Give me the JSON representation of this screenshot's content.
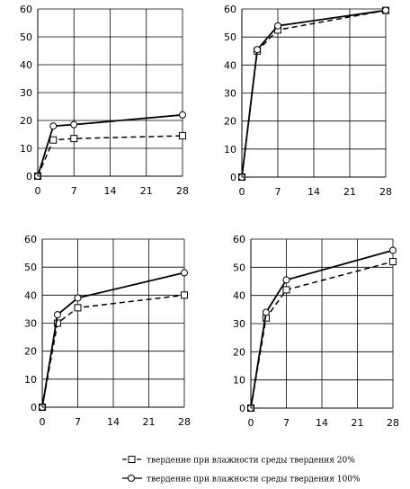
{
  "chart_data": [
    {
      "type": "line",
      "x": [
        0,
        3,
        7,
        28
      ],
      "xticks": [
        0,
        7,
        14,
        21,
        28
      ],
      "yticks": [
        0,
        10,
        20,
        30,
        40,
        50,
        60
      ],
      "xlim": [
        0,
        28
      ],
      "ylim": [
        0,
        60
      ],
      "grid": true,
      "series": [
        {
          "name": "твердение при влажности среды твердения 20%",
          "marker": "square",
          "style": "dashed",
          "values": [
            0,
            13,
            13.5,
            14.5
          ]
        },
        {
          "name": "твердение при влажности среды твердения 100%",
          "marker": "circle",
          "style": "solid",
          "values": [
            0,
            18,
            18.5,
            22
          ]
        }
      ]
    },
    {
      "type": "line",
      "x": [
        0,
        3,
        7,
        28
      ],
      "xticks": [
        0,
        7,
        14,
        21,
        28
      ],
      "yticks": [
        0,
        10,
        20,
        30,
        40,
        50,
        60
      ],
      "xlim": [
        0,
        28
      ],
      "ylim": [
        0,
        60
      ],
      "grid": true,
      "series": [
        {
          "name": "твердение при влажности среды твердения 20%",
          "marker": "square",
          "style": "dashed",
          "values": [
            0,
            45,
            52.5,
            59.5
          ]
        },
        {
          "name": "твердение при влажности среды твердения 100%",
          "marker": "circle",
          "style": "solid",
          "values": [
            0,
            45.5,
            54,
            59.5
          ]
        }
      ]
    },
    {
      "type": "line",
      "x": [
        0,
        3,
        7,
        28
      ],
      "xticks": [
        0,
        7,
        14,
        21,
        28
      ],
      "yticks": [
        0,
        10,
        20,
        30,
        40,
        50,
        60
      ],
      "xlim": [
        0,
        28
      ],
      "ylim": [
        0,
        60
      ],
      "grid": true,
      "series": [
        {
          "name": "твердение при влажности среды твердения 20%",
          "marker": "square",
          "style": "dashed",
          "values": [
            0,
            30,
            35.5,
            40
          ]
        },
        {
          "name": "твердение при влажности среды твердения 100%",
          "marker": "circle",
          "style": "solid",
          "values": [
            0,
            33,
            39,
            48
          ]
        }
      ]
    },
    {
      "type": "line",
      "x": [
        0,
        3,
        7,
        28
      ],
      "xticks": [
        0,
        7,
        14,
        21,
        28
      ],
      "yticks": [
        0,
        10,
        20,
        30,
        40,
        50,
        60
      ],
      "xlim": [
        0,
        28
      ],
      "ylim": [
        0,
        60
      ],
      "grid": true,
      "series": [
        {
          "name": "твердение при влажности среды твердения 20%",
          "marker": "square",
          "style": "dashed",
          "values": [
            0,
            32,
            42,
            52
          ]
        },
        {
          "name": "твердение при влажности среды твердения 100%",
          "marker": "circle",
          "style": "solid",
          "values": [
            0,
            34,
            45.5,
            56
          ]
        }
      ]
    }
  ],
  "legend": {
    "items": [
      {
        "label": "твердение при влажности среды твердения 20%",
        "marker": "square",
        "style": "dashed"
      },
      {
        "label": "твердение при влажности среды твердения 100%",
        "marker": "circle",
        "style": "solid"
      }
    ]
  }
}
